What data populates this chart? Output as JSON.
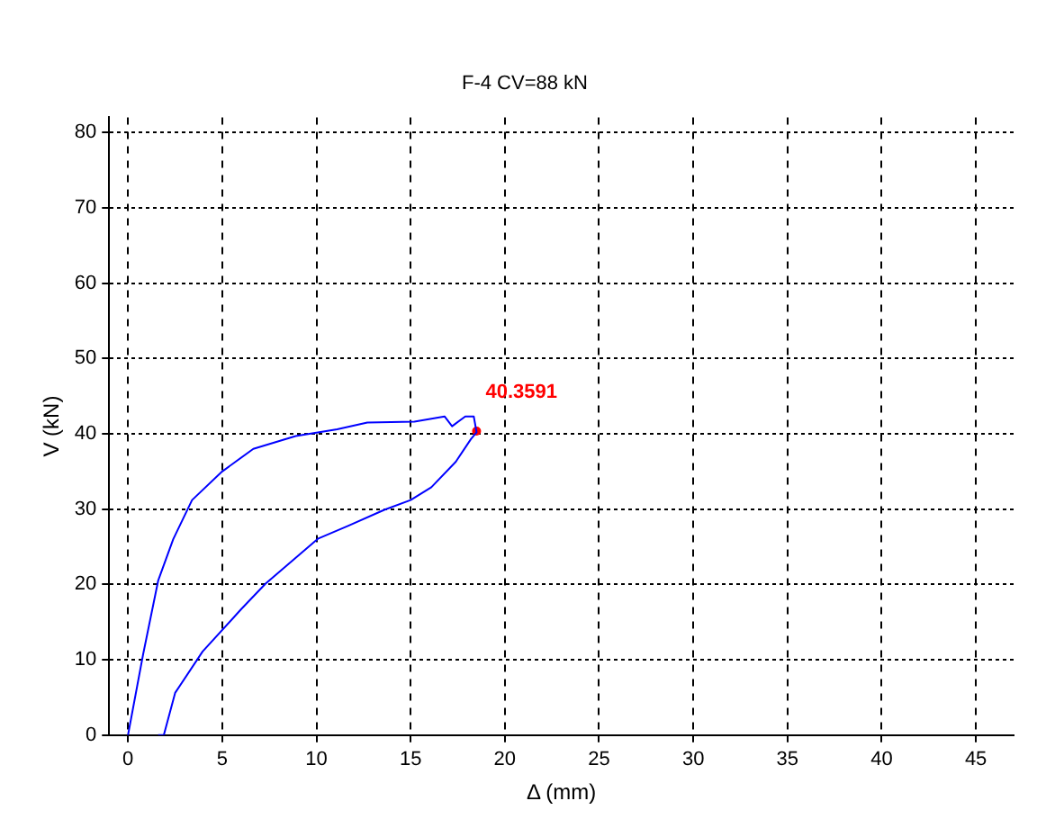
{
  "chart_data": {
    "type": "line",
    "title": "F-4 CV=88 kN",
    "xlabel": "Δ (mm)",
    "ylabel": "V (kN)",
    "xlim": [
      -1,
      47
    ],
    "xticks": [
      0,
      5,
      10,
      15,
      20,
      25,
      30,
      35,
      40,
      45
    ],
    "ylim": [
      0,
      82
    ],
    "yticks": [
      0,
      10,
      20,
      30,
      40,
      50,
      60,
      70,
      80
    ],
    "grid": true,
    "legend": false,
    "series": [
      {
        "marker": "none",
        "color": "#0000ff",
        "x": [
          0,
          0.8,
          1.6,
          2.4,
          3.4,
          5,
          6.65,
          8.9,
          11.1,
          12.7,
          15.2,
          16.8,
          17.2,
          17.9,
          18.35,
          18.5,
          18.2,
          17.4,
          16.1,
          15,
          13.6,
          11.7,
          10.1,
          7.9,
          7.3,
          6,
          3.96,
          2.5,
          1.9,
          1.6
        ],
        "values": [
          0,
          10.7,
          20.5,
          26,
          31.2,
          35,
          38,
          39.7,
          40.6,
          41.5,
          41.6,
          42.3,
          41,
          42.3,
          42.3,
          40.2,
          39.3,
          36.3,
          32.9,
          31.2,
          29.9,
          27.8,
          26.1,
          21.4,
          20.1,
          16.7,
          11.1,
          5.6,
          0,
          0
        ]
      },
      {
        "type": "scatter",
        "marker": "circle",
        "color": "#ff0000",
        "x": [
          18.5
        ],
        "values": [
          40.3591
        ],
        "value_labels": [
          "40.3591"
        ]
      }
    ]
  }
}
